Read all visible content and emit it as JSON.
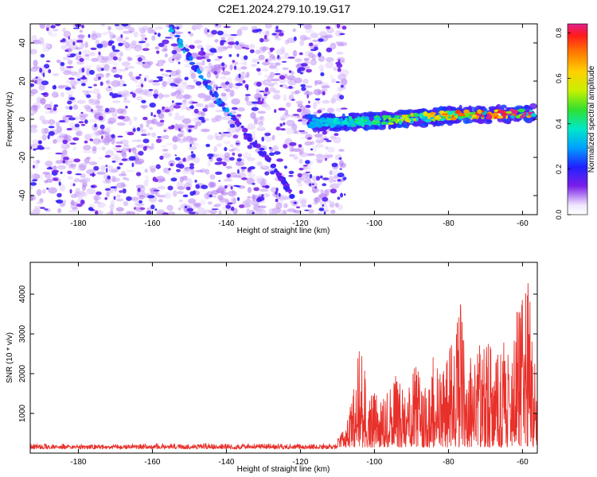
{
  "page_title": "C2E1.2024.279.10.19.G17",
  "colors": {
    "snr_line": "#e8302a",
    "axis": "#000000",
    "background": "#ffffff"
  },
  "chart_data": [
    {
      "type": "heatmap",
      "title": "C2E1.2024.279.10.19.G17",
      "xlabel": "Height of straight line (km)",
      "ylabel": "Frequency (Hz)",
      "xlim": [
        -193,
        -56
      ],
      "ylim": [
        -50,
        50
      ],
      "x_ticks": [
        -180,
        -160,
        -140,
        -120,
        -100,
        -80,
        -60
      ],
      "y_ticks": [
        -40,
        -20,
        0,
        20,
        40
      ],
      "colorbar": {
        "label": "Normalized spectral amplitude",
        "range": [
          0.0,
          0.84
        ],
        "ticks": [
          0.0,
          0.2,
          0.4,
          0.6,
          0.8
        ],
        "tick_labels": [
          "0.0",
          "0.2",
          "0.4",
          "0.6",
          "0.8"
        ]
      },
      "features": [
        {
          "kind": "noise",
          "x_range": [
            -193,
            -108
          ],
          "y_range": [
            -50,
            50
          ],
          "amplitude": [
            0.0,
            0.25
          ]
        },
        {
          "kind": "descending_streak",
          "points": [
            [
              -155,
              48
            ],
            [
              -146,
              20
            ],
            [
              -138,
              0
            ]
          ],
          "amplitude": 0.3
        },
        {
          "kind": "ascending_streak",
          "points": [
            [
              -138,
              0
            ],
            [
              -127,
              -25
            ],
            [
              -121,
              -45
            ]
          ],
          "amplitude": 0.2
        },
        {
          "kind": "signal_band",
          "points": [
            [
              -118,
              -2
            ],
            [
              -100,
              -1
            ],
            [
              -80,
              2
            ],
            [
              -57,
              3
            ]
          ],
          "amplitude": [
            0.3,
            0.84
          ]
        }
      ]
    },
    {
      "type": "line",
      "xlabel": "Height of straight line (km)",
      "ylabel": "SNR (10 * v/v)",
      "xlim": [
        -193,
        -56
      ],
      "ylim": [
        0,
        4800
      ],
      "x_ticks": [
        -180,
        -160,
        -140,
        -120,
        -100,
        -80,
        -60
      ],
      "y_ticks": [
        1000,
        2000,
        3000,
        4000
      ],
      "series": [
        {
          "color": "#e8302a",
          "noise_floor": {
            "x_range": [
              -193,
              -110
            ],
            "values": [
              100,
              250
            ]
          },
          "envelope": [
            [
              -110,
              350
            ],
            [
              -108,
              700
            ],
            [
              -106,
              1400
            ],
            [
              -104,
              3250
            ],
            [
              -102,
              1600
            ],
            [
              -98,
              1500
            ],
            [
              -95,
              2000
            ],
            [
              -92,
              1800
            ],
            [
              -89,
              2200
            ],
            [
              -86,
              1700
            ],
            [
              -84,
              2600
            ],
            [
              -82,
              1900
            ],
            [
              -80,
              2600
            ],
            [
              -77,
              4150
            ],
            [
              -75,
              2100
            ],
            [
              -73,
              3050
            ],
            [
              -70,
              2800
            ],
            [
              -67,
              2600
            ],
            [
              -65,
              2800
            ],
            [
              -63,
              2300
            ],
            [
              -62,
              3900
            ],
            [
              -61,
              3650
            ],
            [
              -59,
              4780
            ],
            [
              -58,
              4400
            ],
            [
              -57,
              2500
            ],
            [
              -56,
              2000
            ]
          ]
        }
      ]
    }
  ]
}
